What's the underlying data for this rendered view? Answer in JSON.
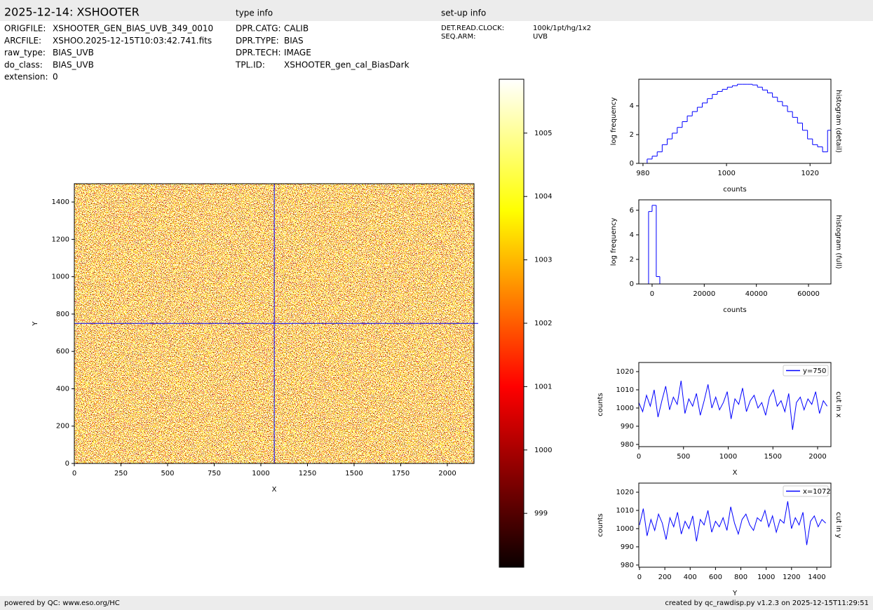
{
  "header": {
    "title": "2025-12-14: XSHOOTER",
    "type_info": "type info",
    "setup_info": "set-up info"
  },
  "file_info": [
    [
      "ORIGFILE:",
      "XSHOOTER_GEN_BIAS_UVB_349_0010"
    ],
    [
      "ARCFILE:",
      "XSHOO.2025-12-15T10:03:42.741.fits"
    ],
    [
      "raw_type:",
      "BIAS_UVB"
    ],
    [
      "do_class:",
      "BIAS_UVB"
    ],
    [
      "extension:",
      "0"
    ]
  ],
  "type_info_rows": [
    [
      "DPR.CATG:",
      "CALIB"
    ],
    [
      "DPR.TYPE:",
      "BIAS"
    ],
    [
      "DPR.TECH:",
      "IMAGE"
    ],
    [
      "TPL.ID:",
      "XSHOOTER_gen_cal_BiasDark"
    ]
  ],
  "setup_rows": [
    [
      "DET.READ.CLOCK:",
      "100k/1pt/hg/1x2"
    ],
    [
      "SEQ.ARM:",
      "UVB"
    ]
  ],
  "footer": {
    "left": "powered by QC: www.eso.org/HC",
    "right": "created by qc_rawdisp.py v1.2.3 on 2025-12-15T11:29:51"
  },
  "chart_data": [
    {
      "type": "image",
      "xlabel": "X",
      "ylabel": "Y",
      "xlim": [
        0,
        2143
      ],
      "ylim": [
        0,
        1498
      ],
      "xticks": [
        0,
        250,
        500,
        750,
        1000,
        1250,
        1500,
        1750,
        2000
      ],
      "yticks": [
        0,
        200,
        400,
        600,
        800,
        1000,
        1200,
        1400
      ],
      "crosshair": {
        "x": 1072,
        "y": 750,
        "color": "#0000ff"
      },
      "colormap": "hot",
      "clim": [
        998.15,
        1005.85
      ],
      "cticks": [
        999,
        1000,
        1001,
        1002,
        1003,
        1004,
        1005
      ]
    },
    {
      "type": "histogram",
      "xlabel": "counts",
      "ylabel": "log frequency",
      "side_label": "histogram (detail)",
      "color": "#0000ff",
      "xlim": [
        979,
        1025
      ],
      "ylim": [
        0,
        5.85
      ],
      "xticks": [
        980,
        1000,
        1020
      ],
      "yticks": [
        0,
        2,
        4
      ],
      "bins": [
        981,
        982.2,
        983.4,
        984.6,
        985.8,
        987,
        988.2,
        989.4,
        990.6,
        991.8,
        993,
        994.2,
        995.4,
        996.6,
        997.8,
        999,
        1000.2,
        1001.4,
        1002.6,
        1003.8,
        1005,
        1006.2,
        1007.4,
        1008.6,
        1009.8,
        1011,
        1012.2,
        1013.4,
        1014.6,
        1015.8,
        1017,
        1018.2,
        1019.4,
        1020.6,
        1021.8,
        1023,
        1024.2,
        1025.4
      ],
      "counts": [
        0.3,
        0.5,
        0.8,
        1.3,
        1.7,
        2.1,
        2.5,
        2.9,
        3.3,
        3.6,
        3.9,
        4.2,
        4.5,
        4.8,
        5.0,
        5.15,
        5.3,
        5.4,
        5.5,
        5.5,
        5.5,
        5.45,
        5.3,
        5.1,
        4.9,
        4.6,
        4.3,
        4.0,
        3.6,
        3.2,
        2.8,
        2.3,
        1.7,
        1.3,
        1.15,
        0.8,
        2.3
      ]
    },
    {
      "type": "histogram",
      "xlabel": "counts",
      "ylabel": "log frequency",
      "side_label": "histogram (full)",
      "color": "#0000ff",
      "xlim": [
        -5100,
        68600
      ],
      "ylim": [
        0,
        6.85
      ],
      "xticks": [
        0,
        20000,
        40000,
        60000
      ],
      "yticks": [
        0,
        2,
        4,
        6
      ],
      "bins": [
        -1350,
        0,
        1600,
        2960
      ],
      "counts": [
        5.9,
        6.4,
        0.6
      ]
    },
    {
      "type": "line",
      "xlabel": "X",
      "ylabel": "counts",
      "side_label": "cut in x",
      "xlim": [
        0,
        2149
      ],
      "ylim": [
        978.8,
        1025
      ],
      "xticks": [
        0,
        500,
        1000,
        1500,
        2000
      ],
      "yticks": [
        980,
        990,
        1000,
        1010,
        1020
      ],
      "x": [
        0,
        43,
        86,
        129,
        172,
        215,
        258,
        301,
        344,
        387,
        430,
        473,
        516,
        559,
        602,
        645,
        688,
        731,
        774,
        817,
        860,
        903,
        946,
        989,
        1032,
        1075,
        1118,
        1161,
        1204,
        1247,
        1290,
        1333,
        1376,
        1419,
        1462,
        1505,
        1548,
        1591,
        1634,
        1677,
        1720,
        1763,
        1806,
        1849,
        1892,
        1935,
        1978,
        2021,
        2064,
        2107
      ],
      "series": [
        {
          "name": "y=750",
          "color": "#0000ff",
          "values": [
            1003,
            998,
            1007,
            1001,
            1010,
            995,
            1004,
            1012,
            999,
            1006,
            1002,
            1015,
            997,
            1005,
            1001,
            1008,
            996,
            1004,
            1013,
            1000,
            1006,
            999,
            1003,
            1009,
            994,
            1005,
            1002,
            1011,
            998,
            1004,
            1007,
            1000,
            1003,
            996,
            1006,
            1010,
            1001,
            1004,
            998,
            1008,
            988,
            1003,
            1006,
            999,
            1005,
            1002,
            1009,
            997,
            1004,
            1001
          ]
        }
      ]
    },
    {
      "type": "line",
      "xlabel": "Y",
      "ylabel": "counts",
      "side_label": "cut in y",
      "xlim": [
        -5.5,
        1511
      ],
      "ylim": [
        978.8,
        1025
      ],
      "xticks": [
        0,
        200,
        400,
        600,
        800,
        1000,
        1200,
        1400
      ],
      "yticks": [
        980,
        990,
        1000,
        1010,
        1020
      ],
      "x": [
        0,
        30,
        60,
        90,
        120,
        150,
        180,
        210,
        240,
        270,
        300,
        330,
        360,
        390,
        420,
        450,
        480,
        510,
        540,
        570,
        600,
        630,
        660,
        690,
        720,
        750,
        780,
        810,
        840,
        870,
        900,
        930,
        960,
        990,
        1020,
        1050,
        1080,
        1110,
        1140,
        1170,
        1200,
        1230,
        1260,
        1290,
        1320,
        1350,
        1380,
        1410,
        1440,
        1470
      ],
      "series": [
        {
          "name": "x=1072",
          "color": "#0000ff",
          "values": [
            1002,
            1011,
            996,
            1005,
            999,
            1008,
            1003,
            994,
            1006,
            1001,
            1009,
            997,
            1004,
            1000,
            1007,
            993,
            1005,
            1002,
            1010,
            998,
            1004,
            1001,
            1006,
            999,
            1012,
            1003,
            997,
            1005,
            1008,
            1002,
            999,
            1006,
            1004,
            1010,
            1001,
            1007,
            998,
            1005,
            1003,
            1015,
            1000,
            1006,
            1002,
            1009,
            991,
            1004,
            1007,
            1001,
            1005,
            1003
          ]
        }
      ]
    }
  ]
}
